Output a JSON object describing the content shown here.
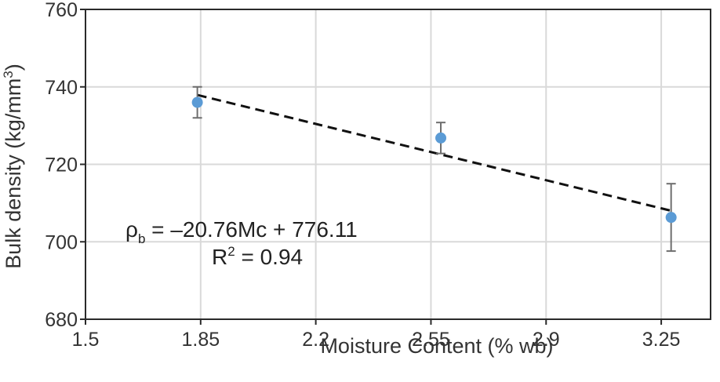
{
  "chart_data": {
    "type": "scatter",
    "xlabel": "Moisture Content (% wb)",
    "ylabel_main": "Bulk density (kg/mm",
    "ylabel_sup": "3",
    "ylabel_end": ")",
    "xlim": [
      1.5,
      3.4
    ],
    "ylim": [
      680,
      760
    ],
    "x_ticks": [
      1.5,
      1.85,
      2.2,
      2.55,
      2.9,
      3.25
    ],
    "x_tick_labels": [
      "1.5",
      "1.85",
      "2.2",
      "2.55",
      "2.9",
      "3.25"
    ],
    "y_ticks": [
      680,
      700,
      720,
      740,
      760
    ],
    "y_tick_labels": [
      "680",
      "700",
      "720",
      "740",
      "760"
    ],
    "grid": true,
    "points": [
      {
        "x": 1.84,
        "y": 736,
        "err": 4
      },
      {
        "x": 2.58,
        "y": 726.8,
        "err": 4
      },
      {
        "x": 3.28,
        "y": 706.3,
        "err": 8.7
      }
    ],
    "trendline": {
      "slope": -20.76,
      "intercept": 776.11,
      "x_start": 1.84,
      "x_end": 3.28
    },
    "equation": {
      "rho": "ρ",
      "sub": "b",
      "rhs": " = –20.76Mc + 776.11",
      "r": "R",
      "r_sup": "2",
      "r_rhs": " = 0.94"
    },
    "colors": {
      "point": "#5b9bd5",
      "trend": "#111111",
      "grid": "#d9d9d9",
      "error": "#6e6e6e"
    }
  }
}
